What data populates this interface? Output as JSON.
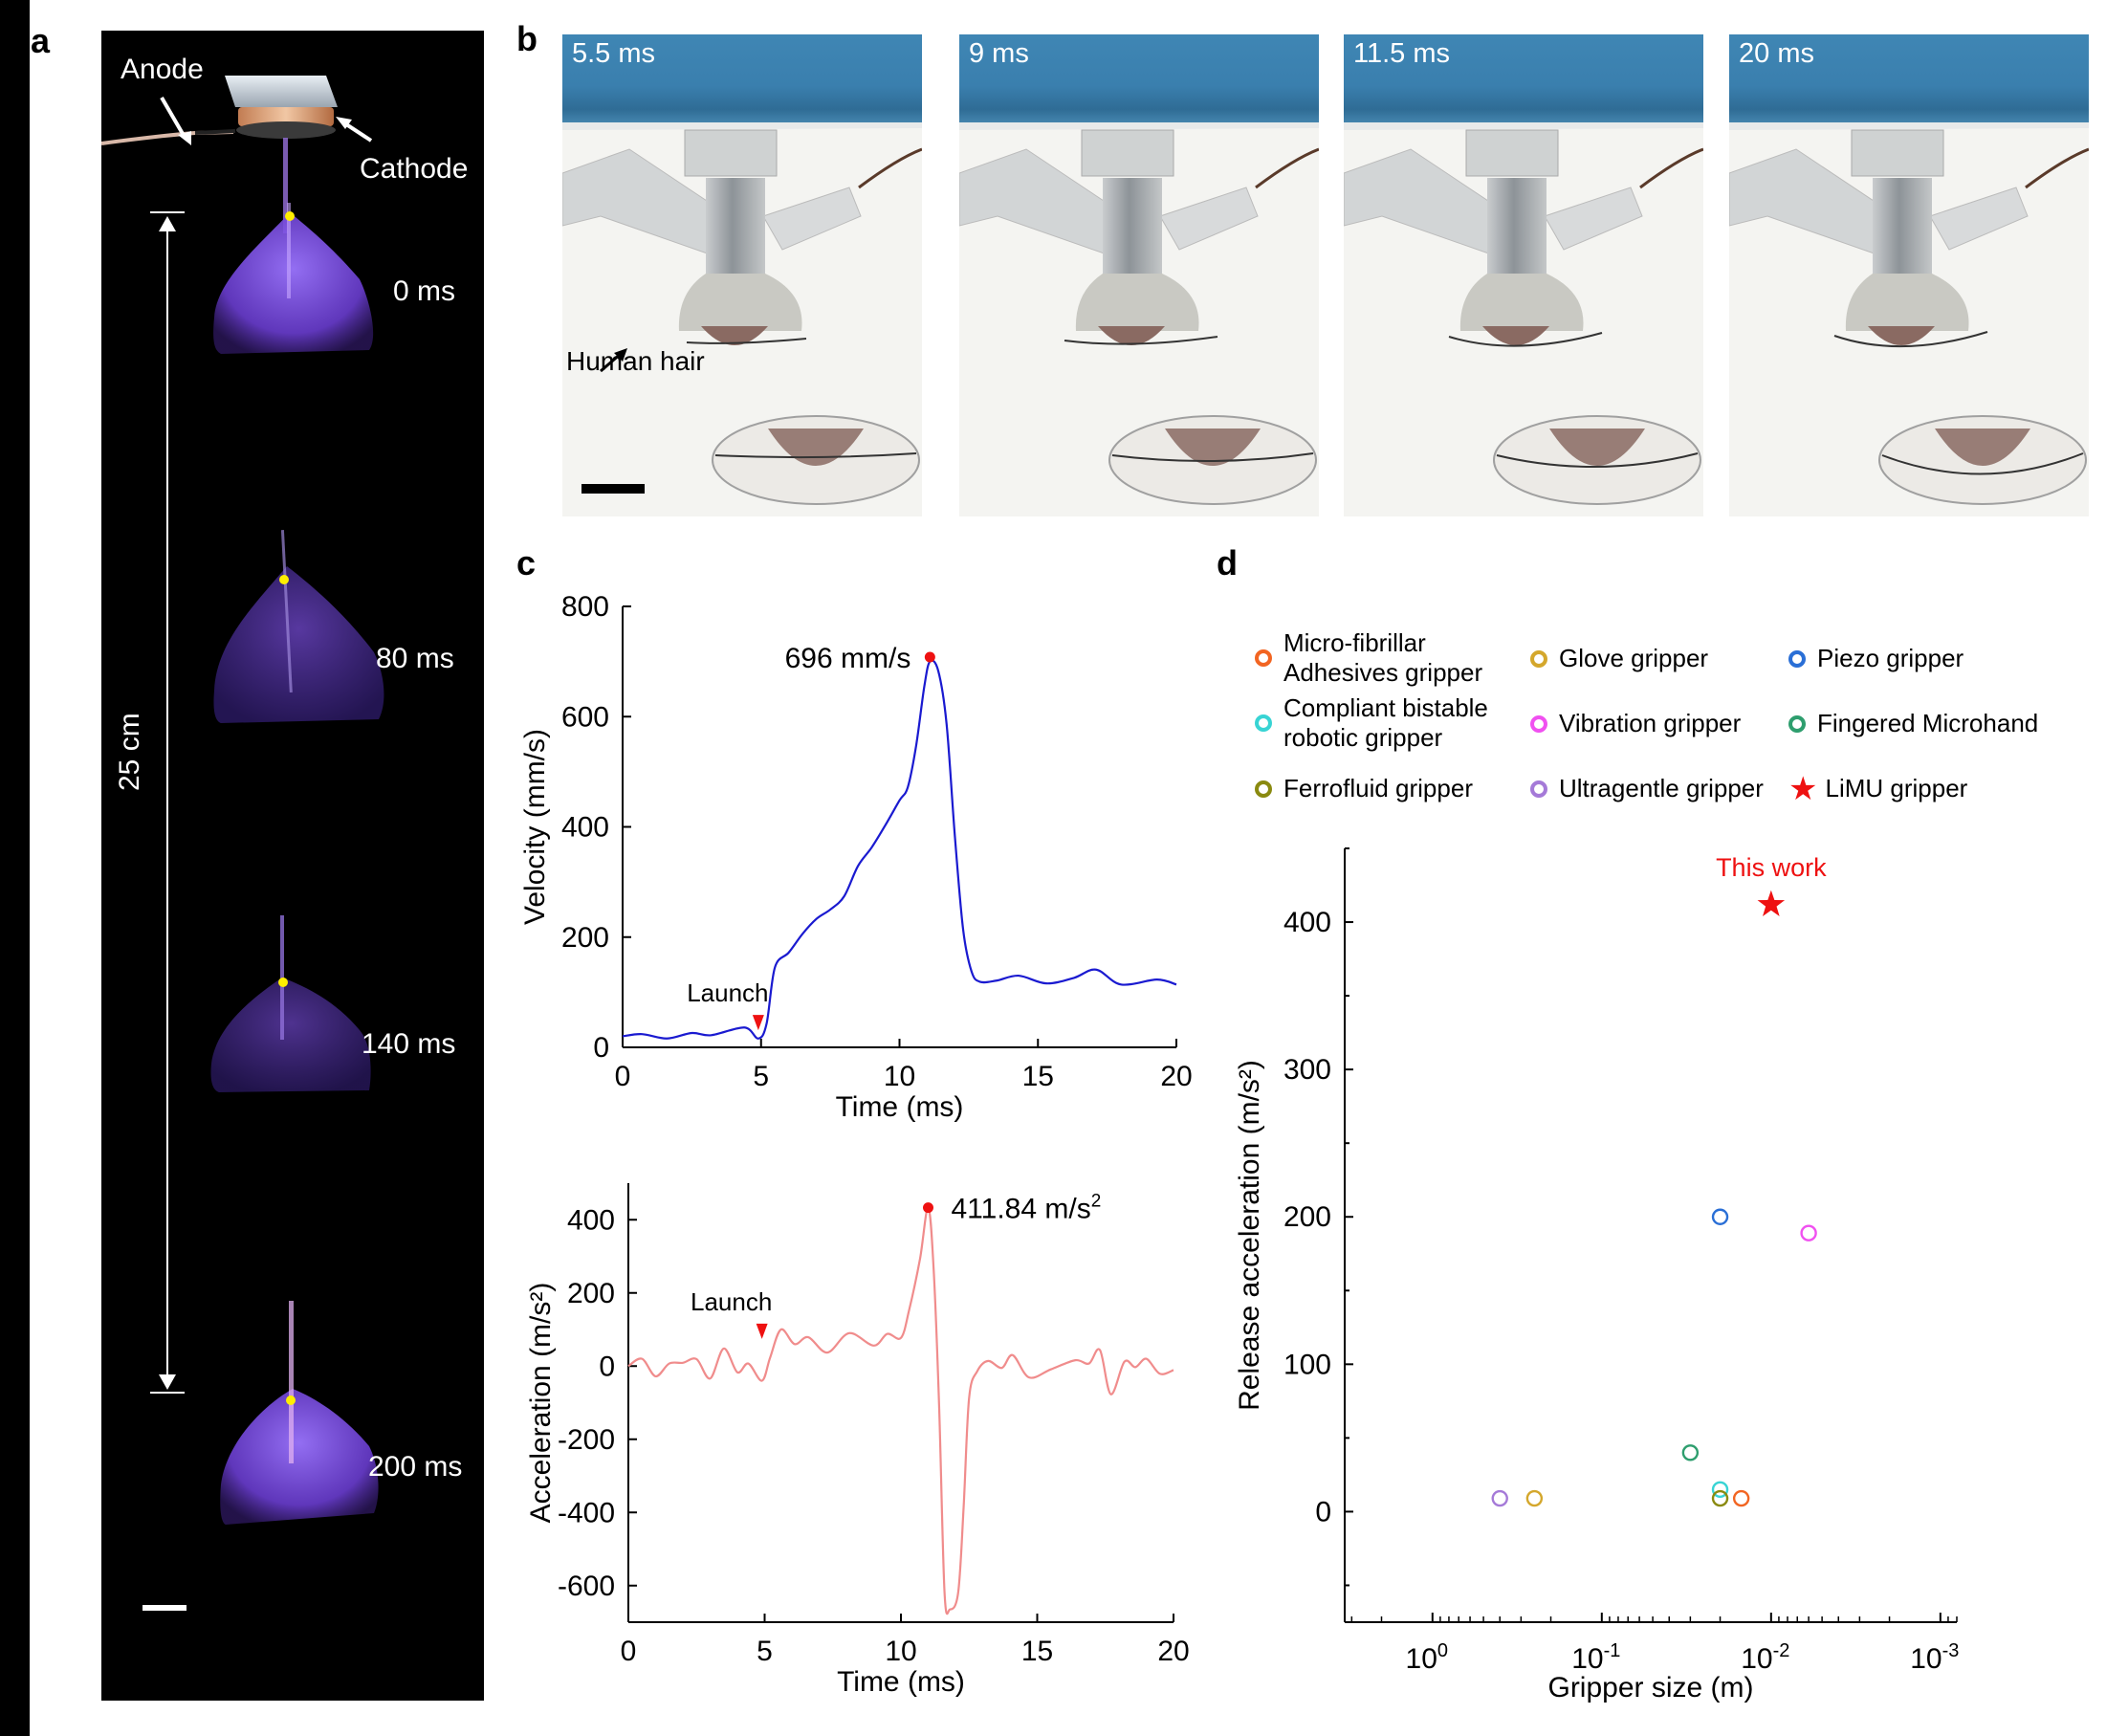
{
  "panel_labels": {
    "a": "a",
    "b": "b",
    "c": "c",
    "d": "d"
  },
  "panel_a": {
    "anode_label": "Anode",
    "cathode_label": "Cathode",
    "distance_label": "25 cm",
    "frames": [
      {
        "time": "0 ms"
      },
      {
        "time": "80 ms"
      },
      {
        "time": "140 ms"
      },
      {
        "time": "200 ms"
      }
    ],
    "colors": {
      "background": "#000000",
      "plume": "#7a4ad8",
      "tracker_dot": "#ffee00"
    }
  },
  "panel_b": {
    "frames": [
      {
        "time": "5.5 ms"
      },
      {
        "time": "9 ms"
      },
      {
        "time": "11.5 ms"
      },
      {
        "time": "20 ms"
      }
    ],
    "hair_label": "Human hair",
    "colors": {
      "holder": "#3f86b4",
      "background": "#f4f4f1"
    }
  },
  "chart_data": [
    {
      "id": "velocity",
      "type": "line",
      "xlabel": "Time (ms)",
      "ylabel": "Velocity (mm/s)",
      "xlim": [
        0,
        20
      ],
      "ylim": [
        0,
        800
      ],
      "xticks": [
        0,
        5,
        10,
        15,
        20
      ],
      "yticks": [
        0,
        200,
        400,
        600,
        800
      ],
      "grid": false,
      "color": "#1a1ad0",
      "series": [
        {
          "name": "Velocity",
          "x": [
            0,
            0.7,
            1.6,
            2.5,
            3.2,
            4.4,
            4.9,
            5.2,
            5.5,
            6.0,
            6.5,
            7.0,
            7.5,
            8.0,
            8.5,
            9.0,
            9.5,
            10.0,
            10.3,
            10.6,
            10.9,
            11.1,
            11.4,
            11.7,
            12.0,
            12.3,
            12.6,
            12.9,
            13.5,
            14.3,
            15.3,
            16.3,
            17.1,
            18.0,
            19.3,
            20.0
          ],
          "y": [
            20,
            24,
            16,
            26,
            22,
            36,
            16,
            43,
            145,
            172,
            206,
            233,
            250,
            274,
            329,
            363,
            404,
            448,
            472,
            547,
            656,
            700,
            683,
            587,
            383,
            213,
            138,
            119,
            121,
            130,
            116,
            126,
            141,
            114,
            123,
            114
          ]
        }
      ],
      "annotations": [
        {
          "type": "peak",
          "x": 11.1,
          "y": 708,
          "text": "696 mm/s",
          "color": "#ee1111"
        },
        {
          "type": "launch",
          "x": 4.9,
          "y": 45,
          "text": "Launch",
          "color": "#ee1111"
        }
      ]
    },
    {
      "id": "acceleration",
      "type": "line",
      "xlabel": "Time (ms)",
      "ylabel": "Acceleration (m/s²)",
      "xlim": [
        0,
        20
      ],
      "ylim": [
        -700,
        500
      ],
      "xticks": [
        0,
        5,
        10,
        15,
        20
      ],
      "yticks": [
        -600,
        -400,
        -200,
        0,
        200,
        400
      ],
      "grid": false,
      "color": "#f08c8c",
      "series": [
        {
          "name": "Acceleration",
          "x": [
            0,
            0.5,
            1.0,
            1.5,
            2.0,
            2.5,
            3.0,
            3.5,
            4.0,
            4.4,
            4.9,
            5.2,
            5.6,
            6.1,
            6.6,
            7.3,
            8.1,
            9.0,
            9.5,
            10.0,
            10.3,
            10.7,
            11.0,
            11.2,
            11.4,
            11.6,
            11.8,
            12.1,
            12.3,
            12.5,
            12.8,
            13.2,
            13.7,
            14.1,
            14.7,
            15.5,
            16.4,
            16.9,
            17.3,
            17.7,
            18.2,
            18.6,
            19.0,
            19.5,
            20.0
          ],
          "y": [
            0,
            20,
            -28,
            7,
            9,
            19,
            -34,
            48,
            -17,
            7,
            -40,
            23,
            100,
            60,
            79,
            37,
            90,
            56,
            88,
            77,
            153,
            293,
            433,
            265,
            -107,
            -619,
            -665,
            -619,
            -386,
            -88,
            -14,
            14,
            -5,
            30,
            -31,
            -9,
            16,
            7,
            44,
            -77,
            12,
            -3,
            20,
            -21,
            -11
          ]
        }
      ],
      "annotations": [
        {
          "type": "peak",
          "x": 11.0,
          "y": 433,
          "text": "411.84 m/s",
          "superscript": "2",
          "color": "#ee1111"
        },
        {
          "type": "launch",
          "x": 4.9,
          "y": 95,
          "text": "Launch",
          "color": "#ee1111"
        }
      ]
    },
    {
      "id": "release",
      "type": "scatter",
      "xlabel": "Gripper size (m)",
      "ylabel": "Release acceleration (m/s²)",
      "xscale": "log",
      "x_reversed": true,
      "xlim": [
        3.3,
        0.0008
      ],
      "ylim": [
        -75,
        450
      ],
      "xticks": [
        1,
        0.1,
        0.01,
        0.001
      ],
      "xtick_labels": [
        {
          "base": "10",
          "exp": "0"
        },
        {
          "base": "10",
          "exp": "-1"
        },
        {
          "base": "10",
          "exp": "-2"
        },
        {
          "base": "10",
          "exp": "-3"
        }
      ],
      "yticks": [
        0,
        100,
        200,
        300,
        400
      ],
      "grid": false,
      "legend_position": "top",
      "series": [
        {
          "name": "Micro-fibrillar Adhesives gripper",
          "label_lines": [
            "Micro-fibrillar",
            "Adhesives gripper"
          ],
          "marker": "circle",
          "color": "#f26522",
          "x": [
            0.015
          ],
          "y": [
            9
          ]
        },
        {
          "name": "Glove gripper",
          "label_lines": [
            "Glove gripper"
          ],
          "marker": "circle",
          "color": "#d4a72c",
          "x": [
            0.25
          ],
          "y": [
            9
          ]
        },
        {
          "name": "Piezo gripper",
          "label_lines": [
            "Piezo gripper"
          ],
          "marker": "circle",
          "color": "#2a6fd6",
          "x": [
            0.02
          ],
          "y": [
            200
          ]
        },
        {
          "name": "Compliant bistable robotic gripper",
          "label_lines": [
            "Compliant bistable",
            "robotic gripper"
          ],
          "marker": "circle",
          "color": "#38d4d4",
          "x": [
            0.02
          ],
          "y": [
            15
          ]
        },
        {
          "name": "Vibration gripper",
          "label_lines": [
            "Vibration gripper"
          ],
          "marker": "circle",
          "color": "#f050f0",
          "x": [
            0.006
          ],
          "y": [
            189
          ]
        },
        {
          "name": "Fingered Microhand",
          "label_lines": [
            "Fingered Microhand"
          ],
          "marker": "circle",
          "color": "#2e9e6e",
          "x": [
            0.03
          ],
          "y": [
            40
          ]
        },
        {
          "name": "Ferrofluid gripper",
          "label_lines": [
            "Ferrofluid gripper"
          ],
          "marker": "circle",
          "color": "#8a8a10",
          "x": [
            0.02
          ],
          "y": [
            9
          ]
        },
        {
          "name": "Ultragentle gripper",
          "label_lines": [
            "Ultragentle gripper"
          ],
          "marker": "circle",
          "color": "#a57ad8",
          "x": [
            0.4
          ],
          "y": [
            9
          ]
        },
        {
          "name": "LiMU gripper",
          "label_lines": [
            "LiMU gripper"
          ],
          "marker": "star",
          "color": "#ee1111",
          "x": [
            0.01
          ],
          "y": [
            411.84
          ]
        }
      ],
      "annotations": [
        {
          "text": "This work",
          "x": 0.01,
          "y": 411.84,
          "color": "#ee1111"
        }
      ]
    }
  ]
}
